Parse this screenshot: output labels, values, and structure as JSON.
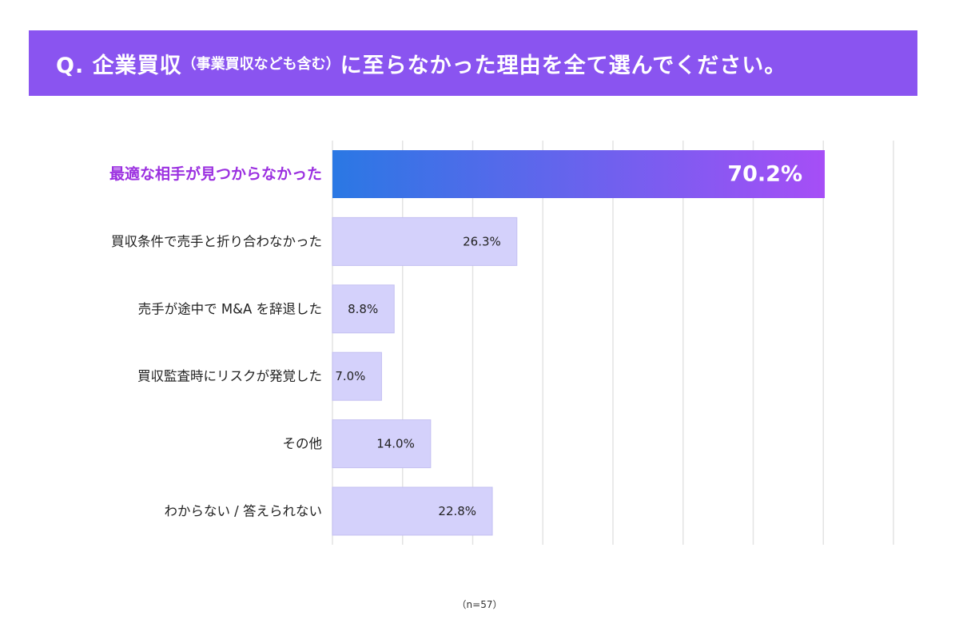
{
  "title": {
    "prefix": "Q. 企業買収",
    "note": "（事業買収なども含む）",
    "suffix": "に至らなかった理由を全て選んでください。"
  },
  "colors": {
    "title_bg": "#8a54f0",
    "highlight_start": "#2a78e4",
    "highlight_end": "#a64ef6",
    "highlight_label": "#9b30e0",
    "bar": "#d4d1fb",
    "bar_border": "#c4c0f2",
    "grid": "#e3e3e3",
    "text": "#222222"
  },
  "chart_data": {
    "type": "bar",
    "orientation": "horizontal",
    "categories": [
      "最適な相手が見つからなかった",
      "買収条件で売手と折り合わなかった",
      "売手が途中で M&A を辞退した",
      "買収監査時にリスクが発覚した",
      "その他",
      "わからない / 答えられない"
    ],
    "values": [
      70.2,
      26.3,
      8.8,
      7.0,
      14.0,
      22.8
    ],
    "value_labels": [
      "70.2%",
      "26.3%",
      "8.8%",
      "7.0%",
      "14.0%",
      "22.8%"
    ],
    "highlight_index": 0,
    "xlim": [
      0,
      80
    ],
    "grid_step": 10,
    "grid": true,
    "unit": "%"
  },
  "footnote": "（n=57）"
}
